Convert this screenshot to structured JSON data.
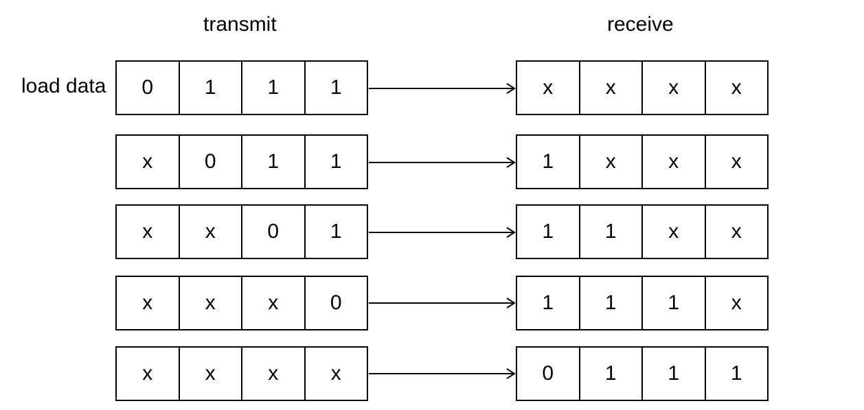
{
  "headings": {
    "transmit": "transmit",
    "receive": "receive"
  },
  "row_label": "load data",
  "rows": [
    {
      "transmit": [
        "0",
        "1",
        "1",
        "1"
      ],
      "receive": [
        "x",
        "x",
        "x",
        "x"
      ]
    },
    {
      "transmit": [
        "x",
        "0",
        "1",
        "1"
      ],
      "receive": [
        "1",
        "x",
        "x",
        "x"
      ]
    },
    {
      "transmit": [
        "x",
        "x",
        "0",
        "1"
      ],
      "receive": [
        "1",
        "1",
        "x",
        "x"
      ]
    },
    {
      "transmit": [
        "x",
        "x",
        "x",
        "0"
      ],
      "receive": [
        "1",
        "1",
        "1",
        "x"
      ]
    },
    {
      "transmit": [
        "x",
        "x",
        "x",
        "x"
      ],
      "receive": [
        "0",
        "1",
        "1",
        "1"
      ]
    }
  ],
  "colors": {
    "stroke": "#000000",
    "background": "#ffffff"
  }
}
